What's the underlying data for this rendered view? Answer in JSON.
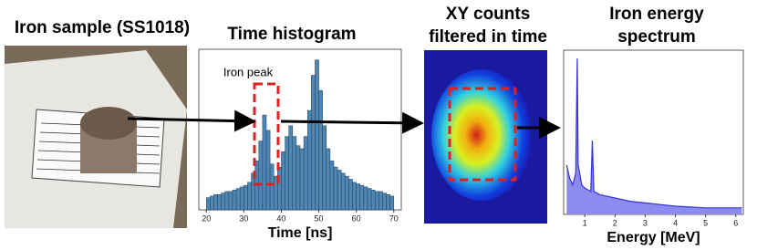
{
  "panels": {
    "sample": {
      "title": "Iron sample (SS1018)"
    },
    "xy": {
      "title": [
        "XY counts",
        "filtered in time"
      ]
    }
  },
  "chart_data": [
    {
      "type": "histogram",
      "title": "Time histogram",
      "x_label": "Time [ns]",
      "annotation": "Iron peak",
      "color": "#4f86b3",
      "bins": [
        20,
        21,
        22,
        23,
        24,
        25,
        26,
        27,
        28,
        29,
        30,
        31,
        32,
        33,
        34,
        35,
        36,
        37,
        38,
        39,
        40,
        41,
        42,
        43,
        44,
        45,
        46,
        47,
        48,
        49,
        50,
        51,
        52,
        53,
        54,
        55,
        56,
        57,
        58,
        59,
        60,
        61,
        62,
        63,
        64,
        65,
        66,
        67,
        68,
        69,
        70
      ],
      "values": [
        8,
        9,
        10,
        10,
        11,
        12,
        12,
        13,
        14,
        15,
        16,
        18,
        24,
        32,
        45,
        62,
        52,
        30,
        22,
        28,
        38,
        48,
        55,
        48,
        42,
        40,
        48,
        65,
        88,
        98,
        78,
        55,
        40,
        32,
        28,
        26,
        24,
        22,
        20,
        18,
        17,
        16,
        15,
        14,
        13,
        12,
        12,
        11,
        10,
        9
      ],
      "xlim": [
        18,
        72
      ],
      "xticks": [
        20,
        30,
        40,
        50,
        60,
        70
      ],
      "ylim": [
        0,
        105
      ]
    },
    {
      "type": "line",
      "title": [
        "Iron energy",
        "spectrum"
      ],
      "x_label": "Energy [MeV]",
      "color": "#3232d6",
      "fill": "#8c8cf0",
      "x": [
        0.4,
        0.5,
        0.6,
        0.7,
        0.75,
        0.78,
        0.9,
        1.0,
        1.2,
        1.25,
        1.3,
        1.5,
        2,
        2.5,
        3,
        3.5,
        4,
        5,
        6,
        6.2
      ],
      "values": [
        30,
        22,
        18,
        25,
        95,
        30,
        18,
        16,
        14,
        45,
        14,
        12,
        10,
        8,
        7,
        6,
        5,
        4,
        4,
        4
      ],
      "xlim": [
        0.3,
        6.25
      ],
      "xticks": [
        1,
        2,
        3,
        4,
        5,
        6
      ],
      "ylim": [
        0,
        100
      ]
    }
  ]
}
